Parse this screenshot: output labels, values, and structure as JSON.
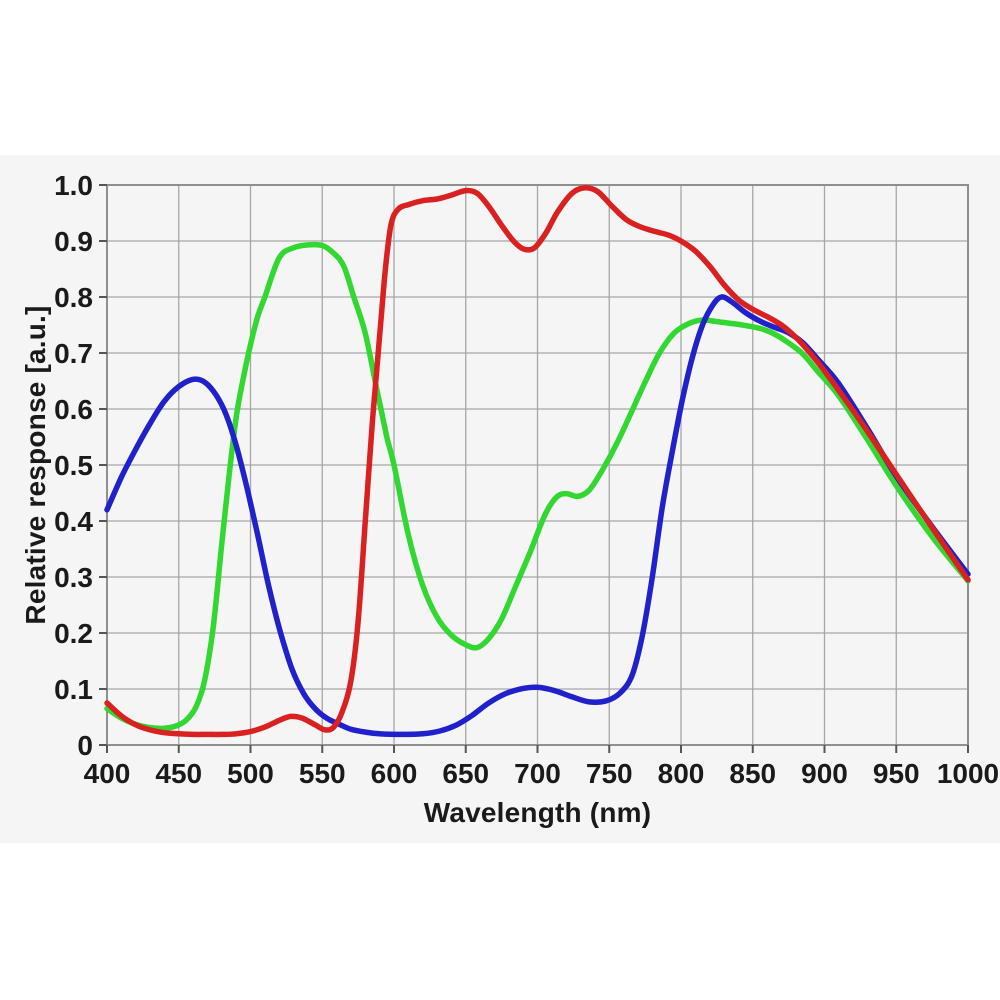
{
  "chart_data": {
    "type": "line",
    "title": "",
    "xlabel": "Wavelength (nm)",
    "ylabel": "Relative response [a.u.]",
    "xlim": [
      400,
      1000
    ],
    "ylim": [
      0,
      1.0
    ],
    "grid": true,
    "legend_position": "none",
    "xticks": [
      400,
      450,
      500,
      550,
      600,
      650,
      700,
      750,
      800,
      850,
      900,
      950,
      1000
    ],
    "yticks": [
      {
        "value": 0.0,
        "label": "0"
      },
      {
        "value": 0.1,
        "label": "0.1"
      },
      {
        "value": 0.2,
        "label": "0.2"
      },
      {
        "value": 0.3,
        "label": "0.3"
      },
      {
        "value": 0.4,
        "label": "0.4"
      },
      {
        "value": 0.5,
        "label": "0.5"
      },
      {
        "value": 0.6,
        "label": "0.6"
      },
      {
        "value": 0.7,
        "label": "0.7"
      },
      {
        "value": 0.8,
        "label": "0.8"
      },
      {
        "value": 0.9,
        "label": "0.9"
      },
      {
        "value": 1.0,
        "label": "1.0"
      }
    ],
    "colors": {
      "red_series": "#d92121",
      "green_series": "#32d732",
      "blue_series": "#2121cc",
      "grid": "#a6a6a6",
      "plot_border": "#8f8f8f",
      "tick": "#555555",
      "text": "#1a1a1a",
      "panel_bg": "#f5f5f5",
      "page_bg": "#ffffff"
    },
    "series": [
      {
        "name": "green",
        "color": "#32d732",
        "points": [
          [
            400,
            0.065
          ],
          [
            410,
            0.048
          ],
          [
            420,
            0.037
          ],
          [
            430,
            0.031
          ],
          [
            440,
            0.03
          ],
          [
            448,
            0.034
          ],
          [
            455,
            0.044
          ],
          [
            462,
            0.068
          ],
          [
            468,
            0.115
          ],
          [
            474,
            0.21
          ],
          [
            480,
            0.36
          ],
          [
            485,
            0.48
          ],
          [
            490,
            0.585
          ],
          [
            495,
            0.655
          ],
          [
            500,
            0.715
          ],
          [
            505,
            0.765
          ],
          [
            510,
            0.8
          ],
          [
            520,
            0.87
          ],
          [
            530,
            0.888
          ],
          [
            540,
            0.893
          ],
          [
            550,
            0.892
          ],
          [
            558,
            0.878
          ],
          [
            565,
            0.855
          ],
          [
            572,
            0.8
          ],
          [
            580,
            0.735
          ],
          [
            588,
            0.635
          ],
          [
            595,
            0.55
          ],
          [
            600,
            0.5
          ],
          [
            610,
            0.375
          ],
          [
            620,
            0.285
          ],
          [
            630,
            0.228
          ],
          [
            640,
            0.196
          ],
          [
            650,
            0.179
          ],
          [
            658,
            0.174
          ],
          [
            666,
            0.19
          ],
          [
            675,
            0.225
          ],
          [
            685,
            0.285
          ],
          [
            695,
            0.345
          ],
          [
            705,
            0.41
          ],
          [
            713,
            0.442
          ],
          [
            720,
            0.449
          ],
          [
            728,
            0.444
          ],
          [
            736,
            0.455
          ],
          [
            745,
            0.49
          ],
          [
            755,
            0.537
          ],
          [
            765,
            0.592
          ],
          [
            775,
            0.648
          ],
          [
            785,
            0.7
          ],
          [
            795,
            0.735
          ],
          [
            805,
            0.752
          ],
          [
            815,
            0.759
          ],
          [
            825,
            0.756
          ],
          [
            840,
            0.751
          ],
          [
            855,
            0.744
          ],
          [
            865,
            0.734
          ],
          [
            875,
            0.718
          ],
          [
            885,
            0.698
          ],
          [
            895,
            0.668
          ],
          [
            910,
            0.623
          ],
          [
            930,
            0.545
          ],
          [
            950,
            0.463
          ],
          [
            975,
            0.372
          ],
          [
            1000,
            0.293
          ]
        ]
      },
      {
        "name": "blue",
        "color": "#2121cc",
        "points": [
          [
            400,
            0.42
          ],
          [
            410,
            0.478
          ],
          [
            420,
            0.528
          ],
          [
            430,
            0.574
          ],
          [
            440,
            0.614
          ],
          [
            450,
            0.64
          ],
          [
            460,
            0.653
          ],
          [
            468,
            0.648
          ],
          [
            476,
            0.625
          ],
          [
            483,
            0.59
          ],
          [
            490,
            0.535
          ],
          [
            497,
            0.465
          ],
          [
            505,
            0.375
          ],
          [
            513,
            0.28
          ],
          [
            521,
            0.2
          ],
          [
            529,
            0.135
          ],
          [
            537,
            0.092
          ],
          [
            545,
            0.065
          ],
          [
            553,
            0.048
          ],
          [
            561,
            0.038
          ],
          [
            570,
            0.028
          ],
          [
            580,
            0.023
          ],
          [
            590,
            0.02
          ],
          [
            605,
            0.019
          ],
          [
            620,
            0.02
          ],
          [
            632,
            0.025
          ],
          [
            643,
            0.035
          ],
          [
            654,
            0.052
          ],
          [
            666,
            0.075
          ],
          [
            678,
            0.092
          ],
          [
            690,
            0.101
          ],
          [
            700,
            0.103
          ],
          [
            712,
            0.097
          ],
          [
            724,
            0.086
          ],
          [
            736,
            0.077
          ],
          [
            748,
            0.079
          ],
          [
            758,
            0.094
          ],
          [
            766,
            0.125
          ],
          [
            773,
            0.195
          ],
          [
            780,
            0.3
          ],
          [
            787,
            0.425
          ],
          [
            794,
            0.525
          ],
          [
            801,
            0.617
          ],
          [
            808,
            0.693
          ],
          [
            815,
            0.75
          ],
          [
            822,
            0.785
          ],
          [
            828,
            0.8
          ],
          [
            835,
            0.792
          ],
          [
            845,
            0.772
          ],
          [
            855,
            0.757
          ],
          [
            865,
            0.746
          ],
          [
            875,
            0.736
          ],
          [
            885,
            0.718
          ],
          [
            895,
            0.69
          ],
          [
            910,
            0.645
          ],
          [
            930,
            0.565
          ],
          [
            950,
            0.48
          ],
          [
            975,
            0.39
          ],
          [
            1000,
            0.305
          ]
        ]
      },
      {
        "name": "red",
        "color": "#d92121",
        "points": [
          [
            400,
            0.075
          ],
          [
            410,
            0.052
          ],
          [
            420,
            0.036
          ],
          [
            430,
            0.027
          ],
          [
            440,
            0.022
          ],
          [
            450,
            0.02
          ],
          [
            460,
            0.019
          ],
          [
            470,
            0.019
          ],
          [
            480,
            0.019
          ],
          [
            490,
            0.02
          ],
          [
            500,
            0.024
          ],
          [
            510,
            0.032
          ],
          [
            520,
            0.044
          ],
          [
            528,
            0.051
          ],
          [
            536,
            0.048
          ],
          [
            545,
            0.036
          ],
          [
            552,
            0.027
          ],
          [
            558,
            0.032
          ],
          [
            564,
            0.06
          ],
          [
            570,
            0.115
          ],
          [
            575,
            0.22
          ],
          [
            580,
            0.4
          ],
          [
            585,
            0.58
          ],
          [
            590,
            0.73
          ],
          [
            594,
            0.85
          ],
          [
            598,
            0.93
          ],
          [
            603,
            0.957
          ],
          [
            610,
            0.965
          ],
          [
            620,
            0.972
          ],
          [
            630,
            0.975
          ],
          [
            640,
            0.982
          ],
          [
            650,
            0.99
          ],
          [
            658,
            0.985
          ],
          [
            666,
            0.962
          ],
          [
            675,
            0.928
          ],
          [
            684,
            0.898
          ],
          [
            691,
            0.885
          ],
          [
            698,
            0.888
          ],
          [
            706,
            0.915
          ],
          [
            714,
            0.952
          ],
          [
            724,
            0.985
          ],
          [
            733,
            0.995
          ],
          [
            742,
            0.988
          ],
          [
            752,
            0.962
          ],
          [
            762,
            0.938
          ],
          [
            772,
            0.925
          ],
          [
            782,
            0.917
          ],
          [
            792,
            0.91
          ],
          [
            800,
            0.9
          ],
          [
            810,
            0.882
          ],
          [
            820,
            0.855
          ],
          [
            830,
            0.822
          ],
          [
            840,
            0.795
          ],
          [
            850,
            0.778
          ],
          [
            860,
            0.765
          ],
          [
            870,
            0.75
          ],
          [
            880,
            0.728
          ],
          [
            890,
            0.7
          ],
          [
            900,
            0.668
          ],
          [
            915,
            0.615
          ],
          [
            930,
            0.56
          ],
          [
            950,
            0.483
          ],
          [
            975,
            0.388
          ],
          [
            1000,
            0.295
          ]
        ]
      }
    ]
  }
}
